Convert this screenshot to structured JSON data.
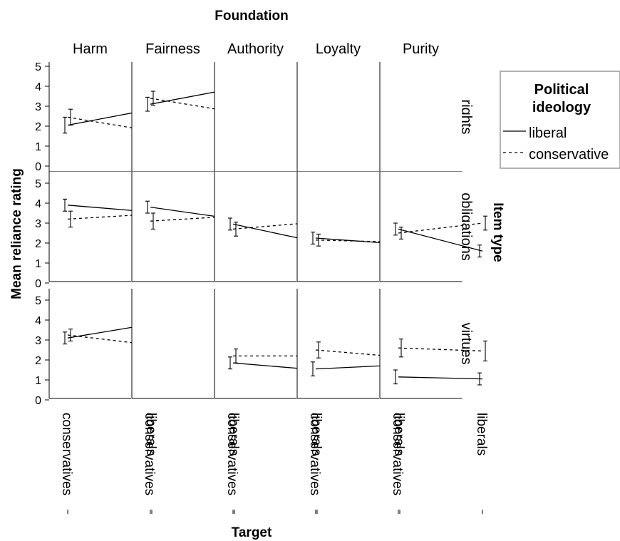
{
  "chart_data": {
    "type": "line",
    "title": "Foundation",
    "xlabel": "Target",
    "ylabel": "Mean reliance rating",
    "row_facet_label": "Item type",
    "col_facets": [
      "Harm",
      "Fairness",
      "Authority",
      "Loyalty",
      "Purity"
    ],
    "row_facets": [
      "rights",
      "obligations",
      "virtues"
    ],
    "categories": [
      "conservatives",
      "liberals"
    ],
    "ylim": [
      0,
      5
    ],
    "yticks": [
      "0",
      "1",
      "2",
      "3",
      "4",
      "5"
    ],
    "legend": {
      "title": "Political ideology",
      "placement": "right",
      "entries": [
        {
          "name": "liberal",
          "style": "solid"
        },
        {
          "name": "conservative",
          "style": "dashed"
        }
      ]
    },
    "panels": [
      {
        "row": "rights",
        "col": "Harm",
        "series": [
          {
            "name": "liberal",
            "values": [
              2.05,
              2.85
            ],
            "err_lo": [
              1.65,
              2.45
            ],
            "err_hi": [
              2.45,
              3.25
            ]
          },
          {
            "name": "conservative",
            "values": [
              2.45,
              1.75
            ],
            "err_lo": [
              2.05,
              1.35
            ],
            "err_hi": [
              2.85,
              2.15
            ]
          }
        ]
      },
      {
        "row": "rights",
        "col": "Fairness",
        "series": [
          {
            "name": "liberal",
            "values": [
              3.1,
              3.9
            ],
            "err_lo": [
              2.75,
              3.6
            ],
            "err_hi": [
              3.45,
              4.2
            ]
          },
          {
            "name": "conservative",
            "values": [
              3.4,
              2.7
            ],
            "err_lo": [
              3.05,
              2.3
            ],
            "err_hi": [
              3.75,
              3.1
            ]
          }
        ]
      },
      {
        "row": "rights",
        "col": "Authority",
        "series": []
      },
      {
        "row": "rights",
        "col": "Loyalty",
        "series": []
      },
      {
        "row": "rights",
        "col": "Purity",
        "series": []
      },
      {
        "row": "obligations",
        "col": "Harm",
        "series": [
          {
            "name": "liberal",
            "values": [
              3.9,
              3.55
            ],
            "err_lo": [
              3.6,
              3.25
            ],
            "err_hi": [
              4.2,
              3.85
            ]
          },
          {
            "name": "conservative",
            "values": [
              3.2,
              3.45
            ],
            "err_lo": [
              2.8,
              3.05
            ],
            "err_hi": [
              3.6,
              3.85
            ]
          }
        ]
      },
      {
        "row": "obligations",
        "col": "Fairness",
        "series": [
          {
            "name": "liberal",
            "values": [
              3.8,
              3.2
            ],
            "err_lo": [
              3.5,
              2.9
            ],
            "err_hi": [
              4.1,
              3.5
            ]
          },
          {
            "name": "conservative",
            "values": [
              3.1,
              3.35
            ],
            "err_lo": [
              2.7,
              3.0
            ],
            "err_hi": [
              3.5,
              3.7
            ]
          }
        ]
      },
      {
        "row": "obligations",
        "col": "Authority",
        "series": [
          {
            "name": "liberal",
            "values": [
              2.95,
              2.05
            ],
            "err_lo": [
              2.65,
              1.75
            ],
            "err_hi": [
              3.25,
              2.35
            ]
          },
          {
            "name": "conservative",
            "values": [
              2.7,
              3.05
            ],
            "err_lo": [
              2.35,
              2.7
            ],
            "err_hi": [
              3.05,
              3.4
            ]
          }
        ]
      },
      {
        "row": "obligations",
        "col": "Loyalty",
        "series": [
          {
            "name": "liberal",
            "values": [
              2.25,
              1.95
            ],
            "err_lo": [
              1.95,
              1.65
            ],
            "err_hi": [
              2.55,
              2.25
            ]
          },
          {
            "name": "conservative",
            "values": [
              2.15,
              2.05
            ],
            "err_lo": [
              1.85,
              1.75
            ],
            "err_hi": [
              2.45,
              2.35
            ]
          }
        ]
      },
      {
        "row": "obligations",
        "col": "Purity",
        "series": [
          {
            "name": "liberal",
            "values": [
              2.7,
              1.6
            ],
            "err_lo": [
              2.4,
              1.3
            ],
            "err_hi": [
              3.0,
              1.9
            ]
          },
          {
            "name": "conservative",
            "values": [
              2.5,
              3.0
            ],
            "err_lo": [
              2.2,
              2.65
            ],
            "err_hi": [
              2.8,
              3.35
            ]
          }
        ]
      },
      {
        "row": "virtues",
        "col": "Harm",
        "series": [
          {
            "name": "liberal",
            "values": [
              3.1,
              3.8
            ],
            "err_lo": [
              2.8,
              3.45
            ],
            "err_hi": [
              3.4,
              4.15
            ]
          },
          {
            "name": "conservative",
            "values": [
              3.25,
              2.75
            ],
            "err_lo": [
              2.95,
              2.35
            ],
            "err_hi": [
              3.55,
              3.15
            ]
          }
        ]
      },
      {
        "row": "virtues",
        "col": "Fairness",
        "series": []
      },
      {
        "row": "virtues",
        "col": "Authority",
        "series": [
          {
            "name": "liberal",
            "values": [
              1.85,
              1.5
            ],
            "err_lo": [
              1.55,
              1.15
            ],
            "err_hi": [
              2.15,
              1.85
            ]
          },
          {
            "name": "conservative",
            "values": [
              2.2,
              2.2
            ],
            "err_lo": [
              1.85,
              1.8
            ],
            "err_hi": [
              2.55,
              2.6
            ]
          }
        ]
      },
      {
        "row": "virtues",
        "col": "Loyalty",
        "series": [
          {
            "name": "liberal",
            "values": [
              1.55,
              1.75
            ],
            "err_lo": [
              1.2,
              1.45
            ],
            "err_hi": [
              1.9,
              2.05
            ]
          },
          {
            "name": "conservative",
            "values": [
              2.5,
              2.15
            ],
            "err_lo": [
              2.1,
              1.8
            ],
            "err_hi": [
              2.9,
              2.5
            ]
          }
        ]
      },
      {
        "row": "virtues",
        "col": "Purity",
        "series": [
          {
            "name": "liberal",
            "values": [
              1.15,
              1.05
            ],
            "err_lo": [
              0.8,
              0.75
            ],
            "err_hi": [
              1.5,
              1.35
            ]
          },
          {
            "name": "conservative",
            "values": [
              2.6,
              2.45
            ],
            "err_lo": [
              2.15,
              1.95
            ],
            "err_hi": [
              3.05,
              2.95
            ]
          }
        ]
      }
    ]
  }
}
